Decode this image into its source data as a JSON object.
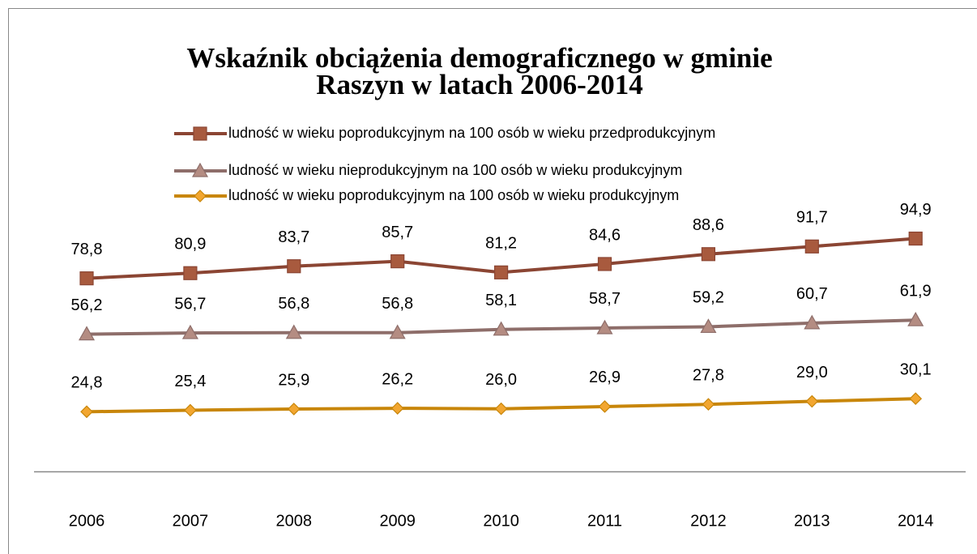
{
  "chart_data": {
    "type": "line",
    "title": "Wskaźnik obciążenia demograficznego w gminie",
    "subtitle": "Raszyn w latach 2006-2014",
    "categories": [
      "2006",
      "2007",
      "2008",
      "2009",
      "2010",
      "2011",
      "2012",
      "2013",
      "2014"
    ],
    "ylim": [
      0,
      100
    ],
    "series": [
      {
        "name": "ludność w wieku poprodukcyjnym na 100 osób w wieku przedprodukcyjnym",
        "color": "#8b4533",
        "marker": "square",
        "marker_color": "#a85a3e",
        "values": [
          78.8,
          80.9,
          83.7,
          85.7,
          81.2,
          84.6,
          88.6,
          91.7,
          94.9
        ],
        "value_labels": [
          "78,8",
          "80,9",
          "83,7",
          "85,7",
          "81,2",
          "84,6",
          "88,6",
          "91,7",
          "94,9"
        ]
      },
      {
        "name": "ludność w wieku nieprodukcyjnym na 100 osób w wieku produkcyjnym",
        "color": "#8e6e6a",
        "marker": "triangle",
        "marker_color": "#b48c82",
        "values": [
          56.2,
          56.7,
          56.8,
          56.8,
          58.1,
          58.7,
          59.2,
          60.7,
          61.9
        ],
        "value_labels": [
          "56,2",
          "56,7",
          "56,8",
          "56,8",
          "58,1",
          "58,7",
          "59,2",
          "60,7",
          "61,9"
        ]
      },
      {
        "name": "ludność w wieku poprodukcyjnym  na 100 osób w wieku produkcyjnym",
        "color": "#c8860a",
        "marker": "diamond",
        "marker_color": "#f2a630",
        "values": [
          24.8,
          25.4,
          25.9,
          26.2,
          26.0,
          26.9,
          27.8,
          29.0,
          30.1
        ],
        "value_labels": [
          "24,8",
          "25,4",
          "25,9",
          "26,2",
          "26,0",
          "26,9",
          "27,8",
          "29,0",
          "30,1"
        ]
      }
    ]
  }
}
